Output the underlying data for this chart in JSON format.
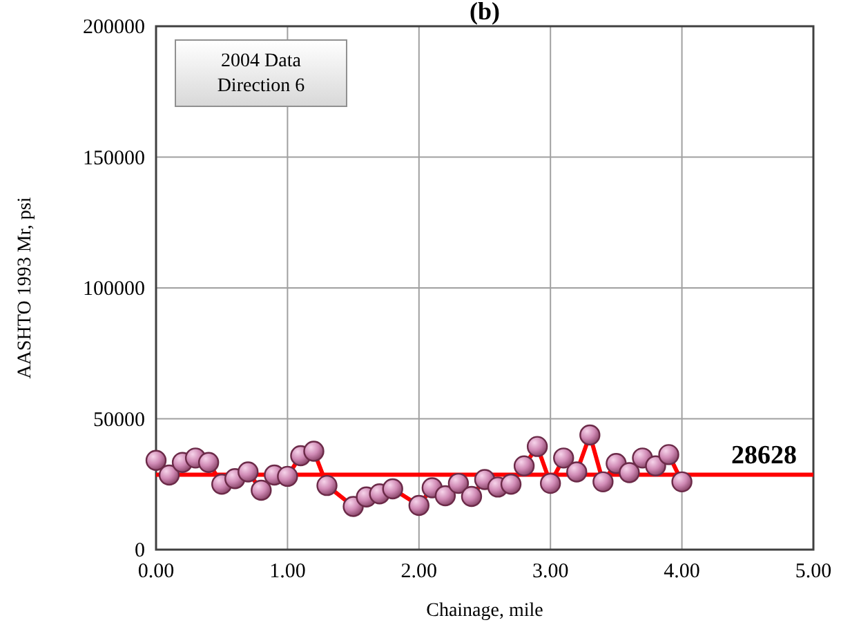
{
  "chart_data": {
    "type": "line",
    "title": "(b)",
    "xlabel": "Chainage, mile",
    "ylabel": "AASHTO 1993 Mr, psi",
    "annotations": [
      "2004 Data\nDirection 6"
    ],
    "x": [
      0.0,
      0.1,
      0.2,
      0.3,
      0.4,
      0.5,
      0.6,
      0.7,
      0.8,
      0.9,
      1.0,
      1.1,
      1.2,
      1.3,
      1.5,
      1.6,
      1.7,
      1.8,
      2.0,
      2.1,
      2.2,
      2.3,
      2.4,
      2.5,
      2.6,
      2.7,
      2.8,
      2.9,
      3.0,
      3.1,
      3.2,
      3.3,
      3.4,
      3.5,
      3.6,
      3.7,
      3.8,
      3.9,
      4.0
    ],
    "series": [
      {
        "color": "#ff0000",
        "values": [
          34100,
          28500,
          33300,
          35000,
          33300,
          25000,
          27100,
          29700,
          22700,
          28500,
          28000,
          35900,
          37600,
          24500,
          16500,
          20100,
          21300,
          23200,
          16900,
          23600,
          20600,
          25300,
          20300,
          26800,
          23900,
          25000,
          32000,
          39400,
          25300,
          35000,
          29700,
          43800,
          25900,
          32900,
          29400,
          35000,
          32000,
          36300,
          25900
        ]
      }
    ],
    "xlim": [
      0,
      5
    ],
    "xticks": [
      {
        "value": 0,
        "label": "0.00"
      },
      {
        "value": 1,
        "label": "1.00"
      },
      {
        "value": 2,
        "label": "2.00"
      },
      {
        "value": 3,
        "label": "3.00"
      },
      {
        "value": 4,
        "label": "4.00"
      },
      {
        "value": 5,
        "label": "5.00"
      }
    ],
    "ylim": [
      0,
      200000
    ],
    "yticks": [
      0,
      50000,
      100000,
      150000,
      200000
    ],
    "ref_lines": [
      {
        "axis": "y",
        "value": 28628,
        "label": "28628",
        "color": "#ff0000"
      }
    ],
    "grid": true,
    "marker": "circle",
    "line_style": "solid"
  }
}
